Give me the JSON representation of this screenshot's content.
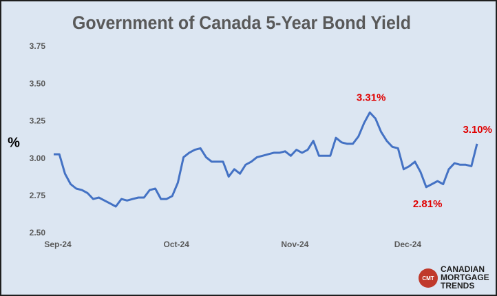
{
  "chart_data": {
    "type": "line",
    "title": "Government of Canada 5-Year Bond Yield",
    "ylabel": "%",
    "categories": [
      "Sep-24",
      null,
      null,
      null,
      null,
      null,
      null,
      null,
      null,
      null,
      null,
      null,
      null,
      null,
      null,
      null,
      null,
      null,
      null,
      null,
      null,
      "Oct-24",
      null,
      null,
      null,
      null,
      null,
      null,
      null,
      null,
      null,
      null,
      null,
      null,
      null,
      null,
      null,
      null,
      null,
      null,
      null,
      null,
      "Nov-24",
      null,
      null,
      null,
      null,
      null,
      null,
      null,
      null,
      null,
      null,
      null,
      null,
      null,
      null,
      null,
      null,
      null,
      null,
      null,
      "Dec-24",
      null,
      null,
      null,
      null,
      null,
      null,
      null,
      null,
      null,
      null,
      null,
      null,
      null
    ],
    "values": [
      3.03,
      3.03,
      2.9,
      2.83,
      2.8,
      2.79,
      2.77,
      2.73,
      2.74,
      2.72,
      2.7,
      2.68,
      2.73,
      2.72,
      2.73,
      2.74,
      2.74,
      2.79,
      2.8,
      2.73,
      2.73,
      2.75,
      2.84,
      3.01,
      3.04,
      3.06,
      3.07,
      3.01,
      2.98,
      2.98,
      2.98,
      2.88,
      2.93,
      2.9,
      2.96,
      2.98,
      3.01,
      3.02,
      3.03,
      3.04,
      3.04,
      3.05,
      3.02,
      3.06,
      3.04,
      3.06,
      3.12,
      3.02,
      3.02,
      3.02,
      3.14,
      3.11,
      3.1,
      3.1,
      3.15,
      3.24,
      3.31,
      3.27,
      3.18,
      3.12,
      3.08,
      3.07,
      2.93,
      2.95,
      2.98,
      2.91,
      2.81,
      2.83,
      2.85,
      2.83,
      2.93,
      2.97,
      2.96,
      2.96,
      2.95,
      3.1
    ],
    "value_labels": [
      null,
      null,
      null,
      null,
      null,
      null,
      null,
      null,
      null,
      null,
      null,
      null,
      null,
      null,
      null,
      null,
      null,
      null,
      null,
      null,
      null,
      null,
      null,
      null,
      null,
      null,
      null,
      null,
      null,
      null,
      null,
      null,
      null,
      null,
      null,
      null,
      null,
      null,
      null,
      null,
      null,
      null,
      null,
      null,
      null,
      null,
      null,
      null,
      null,
      null,
      null,
      null,
      null,
      null,
      null,
      null,
      "3.31%",
      null,
      null,
      null,
      null,
      null,
      null,
      null,
      null,
      null,
      "2.81%",
      null,
      null,
      null,
      null,
      null,
      null,
      null,
      null,
      "3.10%"
    ],
    "color": "#4472c4",
    "label_color": "#e00000",
    "ylim": [
      2.5,
      3.75
    ],
    "yticks": [
      {
        "value": 2.5,
        "label": "2.50"
      },
      2.75,
      {
        "value": 3.0,
        "label": "3.00"
      },
      3.25,
      {
        "value": 3.5,
        "label": "3.50"
      },
      3.75
    ],
    "grid": false
  },
  "logo": {
    "badge": "CMT",
    "lines": [
      "CANADIAN",
      "MORTGAGE",
      "TRENDS"
    ]
  }
}
